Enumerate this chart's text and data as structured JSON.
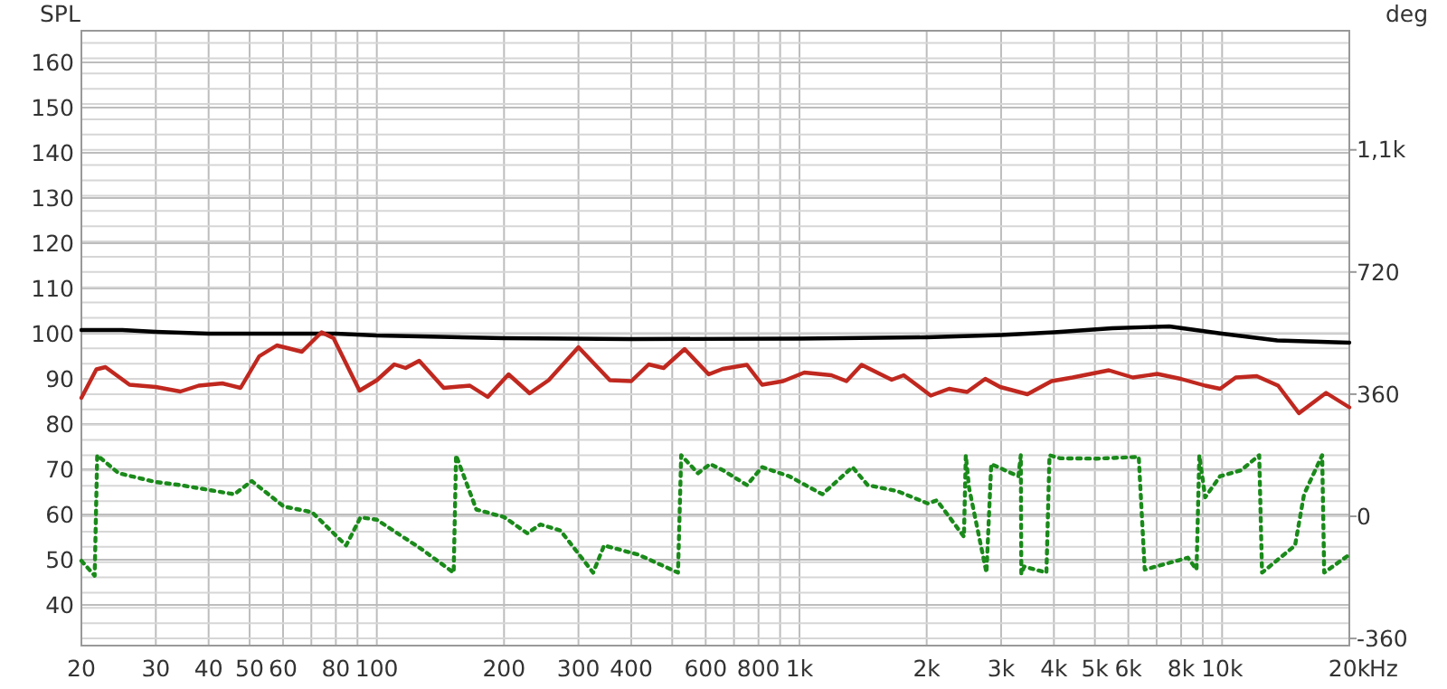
{
  "chart_data": {
    "type": "line",
    "ylabel": "SPL",
    "y2label": "deg",
    "log": "x",
    "grid": true,
    "xlim": [
      20,
      20000
    ],
    "xticks": [
      20,
      30,
      40,
      50,
      60,
      {
        "value": 70,
        "label": null
      },
      80,
      {
        "value": 90,
        "label": null
      },
      100,
      200,
      300,
      400,
      {
        "value": 500,
        "label": null
      },
      600,
      {
        "value": 700,
        "label": null
      },
      800,
      {
        "value": 900,
        "label": null
      },
      {
        "value": 1000,
        "label": "1k"
      },
      {
        "value": 2000,
        "label": "2k"
      },
      {
        "value": 3000,
        "label": "3k"
      },
      {
        "value": 4000,
        "label": "4k"
      },
      {
        "value": 5000,
        "label": "5k"
      },
      {
        "value": 6000,
        "label": "6k"
      },
      {
        "value": 7000,
        "label": null
      },
      {
        "value": 8000,
        "label": "8k"
      },
      {
        "value": 9000,
        "label": null
      },
      {
        "value": 10000,
        "label": "10k"
      },
      {
        "value": 20000,
        "label": "20k"
      }
    ],
    "xlabel": "Hz",
    "ylim": [
      31,
      167
    ],
    "yticks": [
      40,
      50,
      60,
      70,
      80,
      90,
      100,
      110,
      120,
      130,
      140,
      150,
      160
    ],
    "y2lim": [
      -381,
      1431
    ],
    "y2ticks": [
      -360,
      {
        "value": -315,
        "label": null
      },
      {
        "value": -270,
        "label": null
      },
      {
        "value": -225,
        "label": null
      },
      {
        "value": -180,
        "label": null
      },
      {
        "value": -135,
        "label": null
      },
      {
        "value": -90,
        "label": null
      },
      {
        "value": -45,
        "label": null
      },
      0,
      {
        "value": 45,
        "label": null
      },
      {
        "value": 90,
        "label": null
      },
      {
        "value": 135,
        "label": null
      },
      {
        "value": 180,
        "label": null
      },
      {
        "value": 225,
        "label": null
      },
      {
        "value": 270,
        "label": null
      },
      {
        "value": 315,
        "label": null
      },
      360,
      {
        "value": 405,
        "label": null
      },
      {
        "value": 450,
        "label": null
      },
      {
        "value": 495,
        "label": null
      },
      {
        "value": 540,
        "label": null
      },
      {
        "value": 585,
        "label": null
      },
      {
        "value": 630,
        "label": null
      },
      {
        "value": 675,
        "label": null
      },
      720,
      {
        "value": 765,
        "label": null
      },
      {
        "value": 810,
        "label": null
      },
      {
        "value": 855,
        "label": null
      },
      {
        "value": 900,
        "label": null
      },
      {
        "value": 945,
        "label": null
      },
      {
        "value": 990,
        "label": null
      },
      {
        "value": 1035,
        "label": null
      },
      {
        "value": 1080,
        "label": "1,1k"
      },
      {
        "value": 1125,
        "label": null
      },
      {
        "value": 1170,
        "label": null
      },
      {
        "value": 1215,
        "label": null
      },
      {
        "value": 1260,
        "label": null
      },
      {
        "value": 1305,
        "label": null
      },
      {
        "value": 1350,
        "label": null
      },
      {
        "value": 1395,
        "label": null
      }
    ],
    "series": [
      {
        "color": "#000000",
        "line_style": "solid",
        "x": [
          20,
          25,
          30,
          40,
          60,
          80,
          100,
          200,
          400,
          1000,
          2000,
          3000,
          4000,
          5500,
          7500,
          10000,
          13500,
          20000
        ],
        "values": [
          100.8,
          100.8,
          100.4,
          100,
          100,
          100,
          99.6,
          99,
          98.8,
          98.9,
          99.2,
          99.7,
          100.3,
          101.2,
          101.6,
          100,
          98.5,
          98
        ]
      },
      {
        "color": "#c0281f",
        "line_style": "solid",
        "x": [
          20,
          21.7,
          22.8,
          26,
          30,
          34.3,
          37.9,
          43.1,
          47.6,
          52.7,
          58,
          66.5,
          74,
          79,
          91,
          100,
          110,
          117,
          126,
          144,
          166,
          183,
          205,
          230,
          255,
          300,
          356,
          400,
          440,
          477,
          535,
          610,
          658,
          751,
          816,
          915,
          1027,
          1190,
          1292,
          1403,
          1653,
          1765,
          2045,
          2259,
          2493,
          2752,
          2985,
          3462,
          3950,
          4428,
          5395,
          6150,
          7020,
          7985,
          9120,
          9895,
          10770,
          12080,
          13570,
          15200,
          17620,
          20000
        ],
        "values": [
          85.8,
          92.1,
          92.6,
          88.7,
          88.2,
          87.2,
          88.5,
          89,
          88,
          95,
          97.4,
          96,
          100.3,
          99,
          87.4,
          89.7,
          93.2,
          92.4,
          94,
          88,
          88.5,
          86,
          91,
          86.8,
          89.7,
          97,
          89.7,
          89.5,
          93.2,
          92.4,
          96.6,
          91,
          92.2,
          93.1,
          88.7,
          89.5,
          91.4,
          90.8,
          89.5,
          93.1,
          89.8,
          90.8,
          86.3,
          87.8,
          87.1,
          90,
          88.2,
          86.6,
          89.5,
          90.3,
          91.9,
          90.3,
          91.1,
          90,
          88.5,
          87.8,
          90.3,
          90.6,
          88.5,
          82.4,
          86.9,
          83.7
        ]
      },
      {
        "color": "#1a8a1a",
        "line_style": "dotted",
        "axis": "y2",
        "x": [
          20,
          21.5,
          21.8,
          24.5,
          30,
          34.3,
          46,
          50.6,
          60.2,
          70.3,
          84.6,
          91.5,
          100,
          127,
          152,
          154,
          172,
          200,
          227,
          244,
          272,
          325,
          345,
          416,
          516,
          525,
          575,
          615,
          659,
          751,
          816,
          946,
          1133,
          1335,
          1450,
          1708,
          2013,
          2115,
          2450,
          2475,
          2520,
          2770,
          2843,
          3295,
          3340,
          3349,
          3402,
          3840,
          3905,
          4140,
          5045,
          6350,
          6560,
          8300,
          8700,
          8833,
          9120,
          9890,
          11100,
          12240,
          12430,
          14880,
          15630,
          17250,
          17440,
          20000
        ],
        "values": [
          -131,
          -175,
          180,
          127,
          101,
          92,
          65,
          104,
          29,
          12,
          -86,
          -3,
          -10,
          -95,
          -166,
          180,
          20,
          -2,
          -50,
          -24,
          -42,
          -166,
          -86,
          -113,
          -166,
          180,
          127,
          154,
          136,
          92,
          145,
          118,
          65,
          145,
          92,
          74,
          38,
          47,
          -60,
          180,
          83,
          -166,
          154,
          118,
          180,
          -170,
          -148,
          -166,
          180,
          171,
          170,
          175,
          -157,
          -122,
          -157,
          180,
          56,
          118,
          136,
          180,
          -166,
          -86,
          65,
          180,
          -166,
          -113
        ]
      }
    ]
  }
}
